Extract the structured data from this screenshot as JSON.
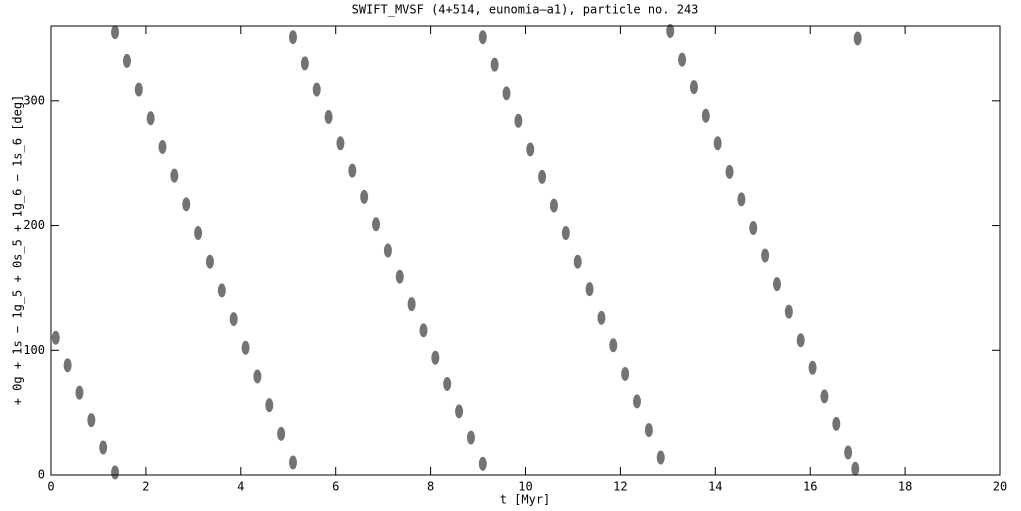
{
  "chart_data": {
    "type": "scatter",
    "title": "SWIFT_MVSF (4+514, eunomia–a1), particle no. 243",
    "x_label": "t [Myr]",
    "y_label": "+ 0g + 1s − 1g_5 + 0s_5 + 1g_6 − 1s_6 [deg]",
    "color": "#000000",
    "xlim": [
      0,
      20
    ],
    "xticks": [
      0,
      2,
      4,
      6,
      8,
      10,
      12,
      14,
      16,
      18,
      20
    ],
    "ylim": [
      0,
      360
    ],
    "yticks": [
      0,
      100,
      200,
      300
    ],
    "x": [
      0.1,
      0.35,
      0.6,
      0.85,
      1.1,
      1.35,
      1.35,
      1.6,
      1.85,
      2.1,
      2.35,
      2.6,
      2.85,
      3.1,
      3.35,
      3.6,
      3.85,
      4.1,
      4.35,
      4.6,
      4.85,
      5.1,
      5.1,
      5.35,
      5.6,
      5.85,
      6.1,
      6.35,
      6.6,
      6.85,
      7.1,
      7.35,
      7.6,
      7.85,
      8.1,
      8.35,
      8.6,
      8.85,
      9.1,
      9.1,
      9.35,
      9.6,
      9.85,
      10.1,
      10.35,
      10.6,
      10.85,
      11.1,
      11.35,
      11.6,
      11.85,
      12.1,
      12.35,
      12.6,
      12.85,
      13.05,
      13.3,
      13.55,
      13.8,
      14.05,
      14.3,
      14.55,
      14.8,
      15.05,
      15.3,
      15.55,
      15.8,
      16.05,
      16.3,
      16.55,
      16.8,
      16.95,
      17.0
    ],
    "values": [
      110,
      88,
      66,
      44,
      22,
      2,
      355,
      332,
      309,
      286,
      263,
      240,
      217,
      194,
      171,
      148,
      125,
      102,
      79,
      56,
      33,
      10,
      351,
      330,
      309,
      287,
      266,
      244,
      223,
      201,
      180,
      159,
      137,
      116,
      94,
      73,
      51,
      30,
      9,
      351,
      329,
      306,
      284,
      261,
      239,
      216,
      194,
      171,
      149,
      126,
      104,
      81,
      59,
      36,
      14,
      356,
      333,
      311,
      288,
      266,
      243,
      221,
      198,
      176,
      153,
      131,
      108,
      86,
      63,
      41,
      18,
      5,
      350
    ]
  }
}
